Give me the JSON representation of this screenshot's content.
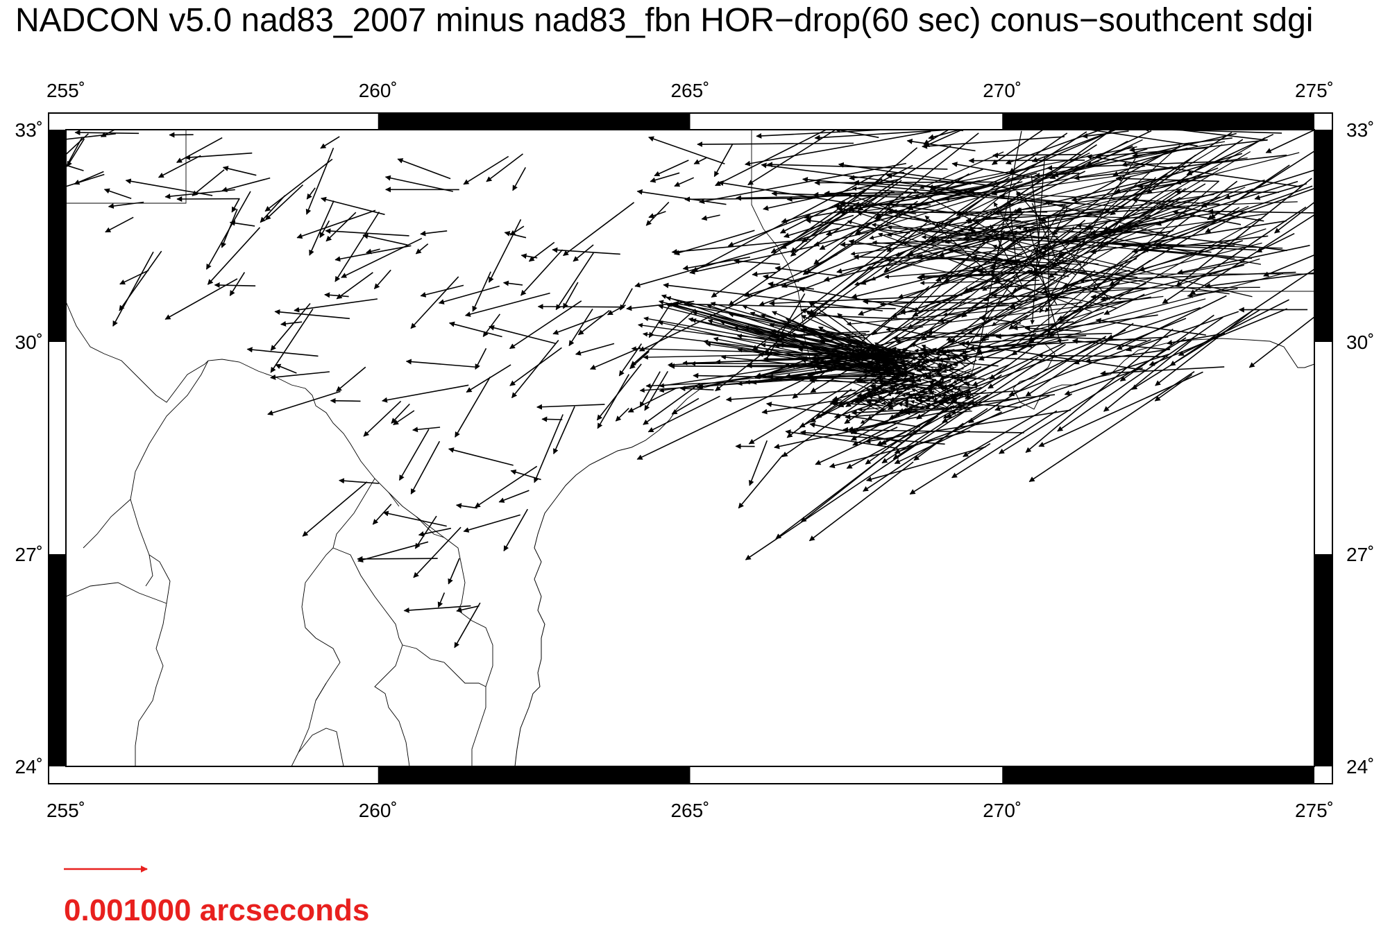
{
  "title": "NADCON v5.0 nad83_2007 minus nad83_fbn HOR−drop(60 sec) conus−southcent sdgi",
  "x_axis": {
    "ticks": [
      "255˚",
      "260˚",
      "265˚",
      "270˚",
      "275˚"
    ],
    "lon_values": [
      255,
      260,
      265,
      270,
      275
    ],
    "range": [
      255,
      275
    ]
  },
  "y_axis": {
    "ticks": [
      "33˚",
      "30˚",
      "27˚",
      "24˚"
    ],
    "lat_values": [
      33,
      30,
      27,
      24
    ],
    "range": [
      24,
      33
    ]
  },
  "scale_legend": {
    "label": "0.001000 arcseconds",
    "color": "#e8201e"
  },
  "map_style": {
    "frame_color": "#000000",
    "vector_color": "#000000",
    "boundary_color": "#000000"
  },
  "chart_data": {
    "type": "vector_field",
    "lon_range": [
      255,
      275
    ],
    "lat_range": [
      24,
      33
    ],
    "vector_anchors_lonlat": [
      [
        255.3,
        32.9
      ],
      [
        255.5,
        32.2
      ],
      [
        256.3,
        32.0
      ],
      [
        256.5,
        31.2
      ],
      [
        256.1,
        32.9
      ],
      [
        257.2,
        32.8
      ],
      [
        257.5,
        32.2
      ],
      [
        257.9,
        32.1
      ],
      [
        258.3,
        32.5
      ],
      [
        258.0,
        31.8
      ],
      [
        258.8,
        32.0
      ],
      [
        259.3,
        32.7
      ],
      [
        259.5,
        31.9
      ],
      [
        260.0,
        31.8
      ],
      [
        260.5,
        31.6
      ],
      [
        261.2,
        32.1
      ],
      [
        261.0,
        31.4
      ],
      [
        261.5,
        31.0
      ],
      [
        262.1,
        32.5
      ],
      [
        262.4,
        31.5
      ],
      [
        262.8,
        31.3
      ],
      [
        263.0,
        30.8
      ],
      [
        263.6,
        31.3
      ],
      [
        263.4,
        30.5
      ],
      [
        264.0,
        30.7
      ],
      [
        264.4,
        31.9
      ],
      [
        265.0,
        32.4
      ],
      [
        265.6,
        32.6
      ],
      [
        265.8,
        31.7
      ],
      [
        265.0,
        30.4
      ],
      [
        264.5,
        29.8
      ],
      [
        264.9,
        29.5
      ],
      [
        265.4,
        29.2
      ],
      [
        266.3,
        28.5
      ],
      [
        263.0,
        29.0
      ],
      [
        262.3,
        28.2
      ],
      [
        262.5,
        27.7
      ],
      [
        261.5,
        27.6
      ],
      [
        261.2,
        26.7
      ],
      [
        261.8,
        26.3
      ],
      [
        260.8,
        27.3
      ],
      [
        259.9,
        27.9
      ],
      [
        259.5,
        29.4
      ],
      [
        259.0,
        29.7
      ],
      [
        260.6,
        29.0
      ],
      [
        261.1,
        28.6
      ],
      [
        261.9,
        29.9
      ],
      [
        262.8,
        30.1
      ],
      [
        263.7,
        29.3
      ],
      [
        259.8,
        30.5
      ],
      [
        258.8,
        30.3
      ],
      [
        258.0,
        30.8
      ],
      [
        260.1,
        31.2
      ],
      [
        262.0,
        30.6
      ],
      [
        261.6,
        29.6
      ],
      [
        264.1,
        29.9
      ],
      [
        266.2,
        31.1
      ],
      [
        266.7,
        30.7
      ],
      [
        267.4,
        31.5
      ],
      [
        268.2,
        31.8
      ],
      [
        268.5,
        32.9
      ],
      [
        269.0,
        32.4
      ],
      [
        269.5,
        31.8
      ],
      [
        270.2,
        32.7
      ],
      [
        270.8,
        32.0
      ],
      [
        271.3,
        31.2
      ],
      [
        271.9,
        30.6
      ],
      [
        272.4,
        29.9
      ],
      [
        273.0,
        31.6
      ],
      [
        273.6,
        32.4
      ],
      [
        274.2,
        31.8
      ],
      [
        274.6,
        30.8
      ],
      [
        272.9,
        30.1
      ],
      [
        271.0,
        30.3
      ],
      [
        270.3,
        29.5
      ],
      [
        269.8,
        29.1
      ],
      [
        269.2,
        28.8
      ],
      [
        268.3,
        29.3
      ],
      [
        267.8,
        29.7
      ],
      [
        268.9,
        29.9
      ],
      [
        269.4,
        30.2
      ],
      [
        270.6,
        31.5
      ],
      [
        272.0,
        32.9
      ],
      [
        273.1,
        32.8
      ],
      [
        274.8,
        32.6
      ]
    ]
  }
}
